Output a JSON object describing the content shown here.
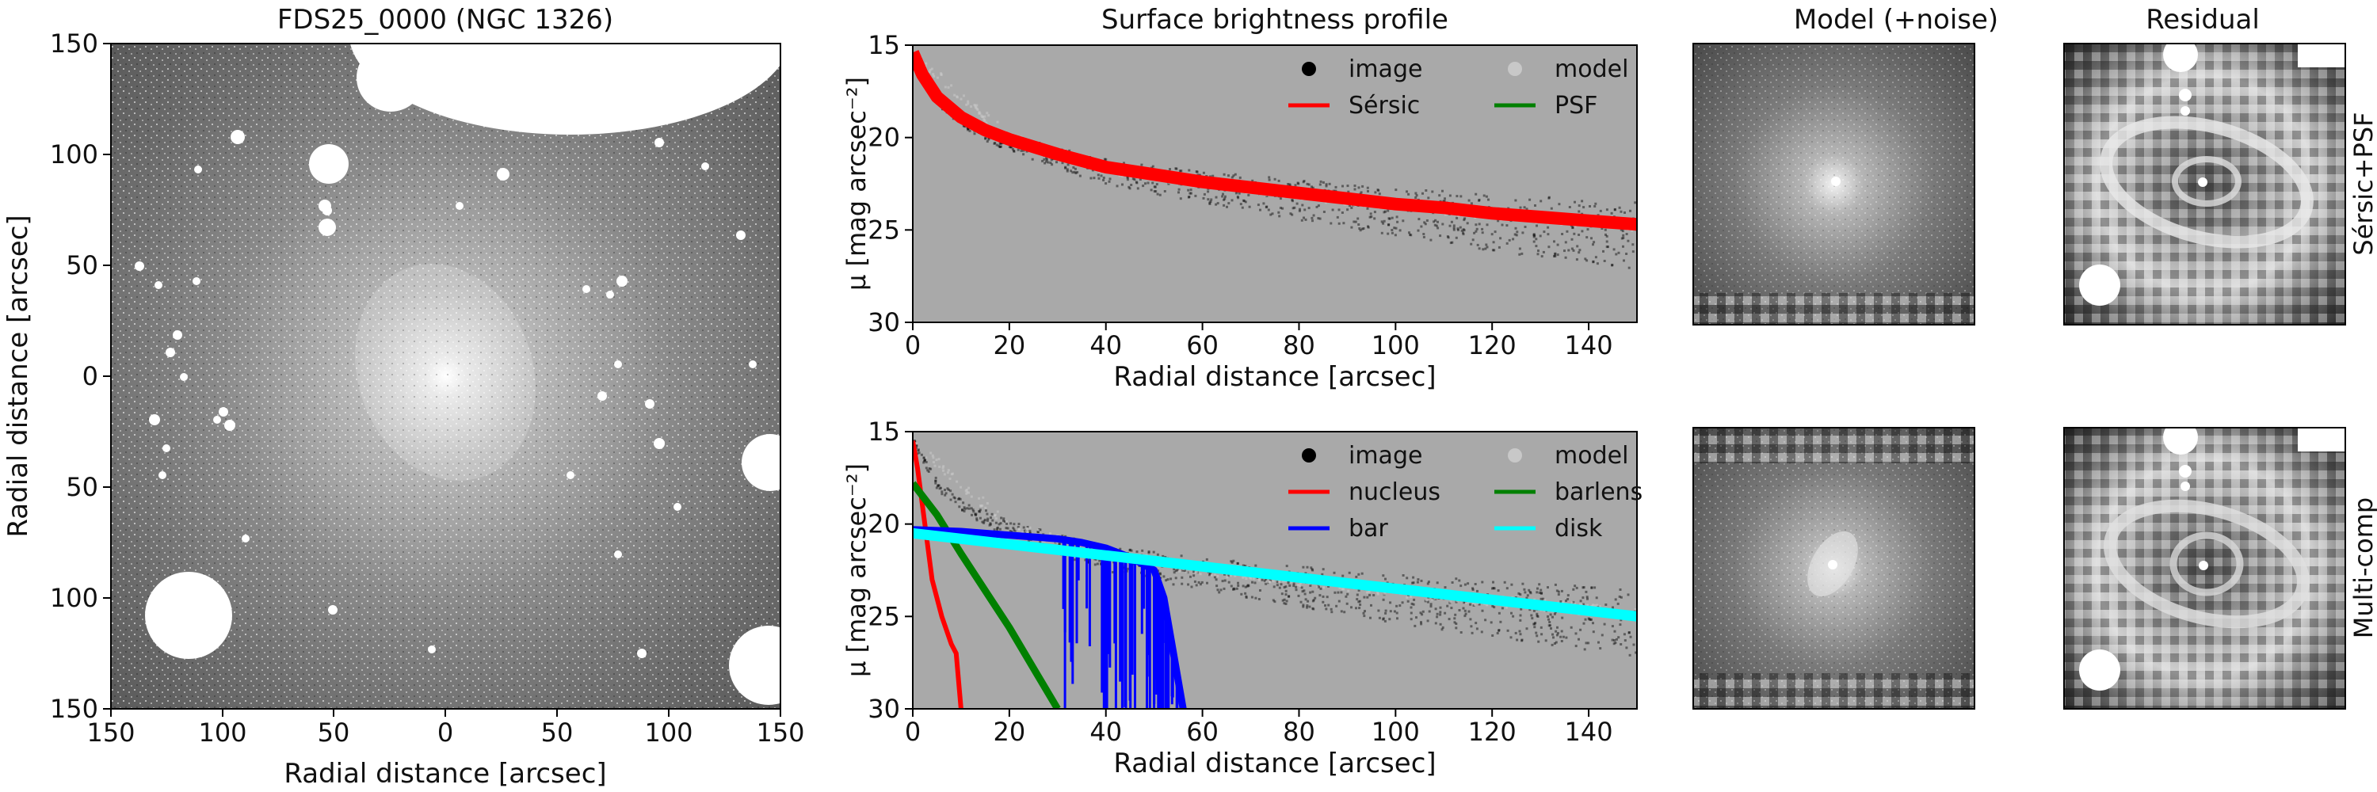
{
  "figure": {
    "sky_title": "FDS25_0000 (NGC 1326)",
    "profile_title": "Surface brightness profile",
    "model_title": "Model (+noise)",
    "residual_title": "Residual",
    "row_labels": [
      "Sérsic+PSF",
      "Multi-comp"
    ]
  },
  "image_panel": {
    "xlabel": "Radial distance [arcsec]",
    "ylabel": "Radial distance [arcsec]",
    "xticks": [
      "150",
      "100",
      "50",
      "0",
      "50",
      "100",
      "150"
    ],
    "yticks": [
      "150",
      "100",
      "50",
      "0",
      "50",
      "100",
      "150"
    ]
  },
  "colors": {
    "background_gray": "#a9a9a9",
    "image_points": "#000000",
    "model_points": "#c8c8c8",
    "sersic": "#ff0000",
    "psf": "#008000",
    "nucleus": "#ff0000",
    "barlens": "#008000",
    "bar": "#0000ff",
    "disk": "#00ffff"
  },
  "chart_data": [
    {
      "type": "scatter",
      "title": "Surface brightness profile",
      "xlabel": "Radial distance [arcsec]",
      "ylabel": "μ [mag arcsec⁻²]",
      "xlim": [
        0,
        150
      ],
      "ylim": [
        30,
        15
      ],
      "xticks": [
        0,
        20,
        40,
        60,
        80,
        100,
        120,
        140
      ],
      "yticks": [
        15,
        20,
        25,
        30
      ],
      "legend": [
        "image",
        "model",
        "Sérsic",
        "PSF"
      ],
      "legend_position": "top-right",
      "series": [
        {
          "name": "image",
          "x": [
            0,
            2,
            5,
            10,
            15,
            20,
            30,
            40,
            50,
            60,
            70,
            80,
            90,
            100,
            110,
            120,
            130,
            140,
            150
          ],
          "y": [
            15.5,
            16.6,
            17.8,
            18.9,
            19.6,
            20.1,
            20.9,
            21.6,
            22.0,
            22.4,
            22.7,
            23.0,
            23.3,
            23.6,
            23.8,
            24.1,
            24.3,
            24.5,
            24.7
          ]
        },
        {
          "name": "model",
          "x": [
            0,
            20,
            40,
            60,
            80,
            100,
            120,
            150
          ],
          "y": [
            15.5,
            20.0,
            21.6,
            22.4,
            23.0,
            23.6,
            24.1,
            24.7
          ]
        },
        {
          "name": "Sérsic",
          "x": [
            0,
            2,
            5,
            10,
            15,
            20,
            30,
            40,
            50,
            60,
            70,
            80,
            90,
            100,
            110,
            120,
            130,
            140,
            150
          ],
          "y": [
            15.4,
            16.6,
            17.8,
            18.9,
            19.6,
            20.1,
            20.9,
            21.6,
            22.0,
            22.4,
            22.7,
            23.0,
            23.3,
            23.6,
            23.8,
            24.1,
            24.3,
            24.5,
            24.7
          ]
        },
        {
          "name": "PSF",
          "x": [],
          "y": []
        }
      ]
    },
    {
      "type": "scatter",
      "title": "",
      "xlabel": "Radial distance [arcsec]",
      "ylabel": "μ [mag arcsec⁻²]",
      "xlim": [
        0,
        150
      ],
      "ylim": [
        30,
        15
      ],
      "xticks": [
        0,
        20,
        40,
        60,
        80,
        100,
        120,
        140
      ],
      "yticks": [
        15,
        20,
        25,
        30
      ],
      "legend": [
        "image",
        "model",
        "nucleus",
        "barlens",
        "bar",
        "disk"
      ],
      "legend_position": "top-right",
      "series": [
        {
          "name": "image",
          "x": [
            0,
            5,
            10,
            20,
            30,
            40,
            50,
            60,
            80,
            100,
            120,
            150
          ],
          "y": [
            15.5,
            17.8,
            18.9,
            20.1,
            20.9,
            21.6,
            22.0,
            22.4,
            23.0,
            23.6,
            24.1,
            24.7
          ]
        },
        {
          "name": "model",
          "x": [
            0,
            20,
            40,
            60,
            80,
            100,
            120,
            150
          ],
          "y": [
            15.5,
            20.1,
            21.6,
            22.4,
            23.0,
            23.6,
            24.1,
            24.8
          ]
        },
        {
          "name": "nucleus",
          "x": [
            0,
            1,
            2,
            3,
            4,
            6,
            8,
            9,
            10
          ],
          "y": [
            15.5,
            17.0,
            19.0,
            21.0,
            23.0,
            25.0,
            26.5,
            27.0,
            30.0
          ]
        },
        {
          "name": "barlens",
          "x": [
            0,
            5,
            10,
            15,
            20,
            25,
            30
          ],
          "y": [
            17.8,
            19.5,
            21.6,
            23.6,
            25.6,
            27.8,
            30.0
          ]
        },
        {
          "name": "bar",
          "x": [
            0,
            10,
            20,
            30,
            35,
            40,
            45,
            50,
            52,
            56
          ],
          "y": [
            20.3,
            20.4,
            20.6,
            20.8,
            21.0,
            21.3,
            21.8,
            22.5,
            24.0,
            30.0
          ]
        },
        {
          "name": "disk",
          "x": [
            0,
            20,
            40,
            60,
            80,
            100,
            120,
            150
          ],
          "y": [
            20.5,
            21.1,
            21.7,
            22.3,
            22.9,
            23.5,
            24.1,
            25.0
          ]
        }
      ]
    }
  ]
}
